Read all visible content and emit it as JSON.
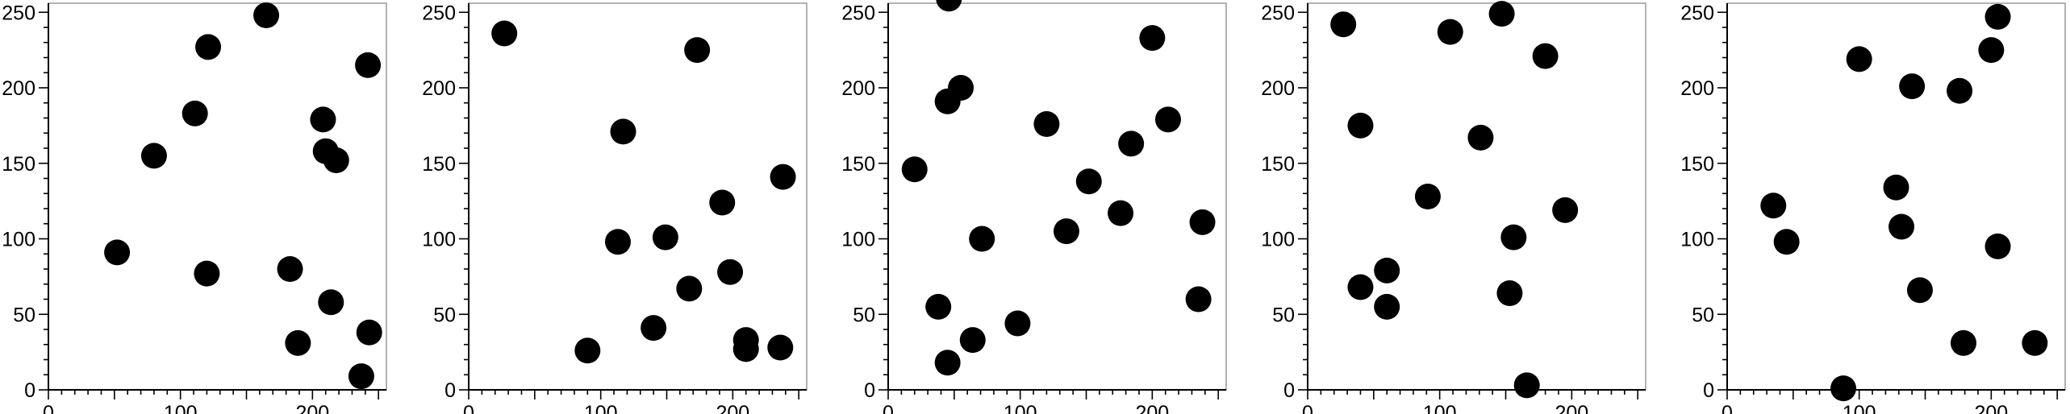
{
  "chart_data": [
    {
      "type": "scatter",
      "xlim": [
        0,
        256
      ],
      "ylim": [
        0,
        256
      ],
      "xticks": [
        "0",
        "100",
        "200"
      ],
      "yticks": [
        "0",
        "50",
        "100",
        "150",
        "200",
        "250"
      ],
      "grid": false,
      "marker_color": "#000000",
      "points": [
        {
          "x": 165,
          "y": 248
        },
        {
          "x": 121,
          "y": 227
        },
        {
          "x": 242,
          "y": 215
        },
        {
          "x": 111,
          "y": 183
        },
        {
          "x": 80,
          "y": 155
        },
        {
          "x": 208,
          "y": 179
        },
        {
          "x": 210,
          "y": 158
        },
        {
          "x": 218,
          "y": 152
        },
        {
          "x": 52,
          "y": 91
        },
        {
          "x": 120,
          "y": 77
        },
        {
          "x": 183,
          "y": 80
        },
        {
          "x": 214,
          "y": 58
        },
        {
          "x": 243,
          "y": 38
        },
        {
          "x": 189,
          "y": 31
        },
        {
          "x": 237,
          "y": 9
        }
      ]
    },
    {
      "type": "scatter",
      "xlim": [
        0,
        256
      ],
      "ylim": [
        0,
        256
      ],
      "xticks": [
        "0",
        "100",
        "200"
      ],
      "yticks": [
        "0",
        "50",
        "100",
        "150",
        "200",
        "250"
      ],
      "grid": false,
      "marker_color": "#000000",
      "points": [
        {
          "x": 27,
          "y": 236
        },
        {
          "x": 173,
          "y": 225
        },
        {
          "x": 117,
          "y": 171
        },
        {
          "x": 238,
          "y": 141
        },
        {
          "x": 192,
          "y": 124
        },
        {
          "x": 149,
          "y": 101
        },
        {
          "x": 113,
          "y": 98
        },
        {
          "x": 198,
          "y": 78
        },
        {
          "x": 167,
          "y": 67
        },
        {
          "x": 140,
          "y": 41
        },
        {
          "x": 90,
          "y": 26
        },
        {
          "x": 210,
          "y": 33
        },
        {
          "x": 210,
          "y": 27
        },
        {
          "x": 236,
          "y": 28
        }
      ]
    },
    {
      "type": "scatter",
      "xlim": [
        0,
        256
      ],
      "ylim": [
        0,
        256
      ],
      "xticks": [
        "0",
        "100",
        "200"
      ],
      "yticks": [
        "0",
        "50",
        "100",
        "150",
        "200",
        "250"
      ],
      "grid": false,
      "marker_color": "#000000",
      "points": [
        {
          "x": 46,
          "y": 259
        },
        {
          "x": 200,
          "y": 233
        },
        {
          "x": 55,
          "y": 200
        },
        {
          "x": 45,
          "y": 191
        },
        {
          "x": 120,
          "y": 176
        },
        {
          "x": 212,
          "y": 179
        },
        {
          "x": 184,
          "y": 163
        },
        {
          "x": 20,
          "y": 146
        },
        {
          "x": 152,
          "y": 138
        },
        {
          "x": 176,
          "y": 117
        },
        {
          "x": 238,
          "y": 111
        },
        {
          "x": 135,
          "y": 105
        },
        {
          "x": 71,
          "y": 100
        },
        {
          "x": 38,
          "y": 55
        },
        {
          "x": 235,
          "y": 60
        },
        {
          "x": 98,
          "y": 44
        },
        {
          "x": 64,
          "y": 33
        },
        {
          "x": 45,
          "y": 18
        }
      ]
    },
    {
      "type": "scatter",
      "xlim": [
        0,
        256
      ],
      "ylim": [
        0,
        256
      ],
      "xticks": [
        "0",
        "100",
        "200"
      ],
      "yticks": [
        "0",
        "50",
        "100",
        "150",
        "200",
        "250"
      ],
      "grid": false,
      "marker_color": "#000000",
      "points": [
        {
          "x": 27,
          "y": 242
        },
        {
          "x": 147,
          "y": 249
        },
        {
          "x": 108,
          "y": 237
        },
        {
          "x": 180,
          "y": 221
        },
        {
          "x": 40,
          "y": 175
        },
        {
          "x": 131,
          "y": 167
        },
        {
          "x": 91,
          "y": 128
        },
        {
          "x": 195,
          "y": 119
        },
        {
          "x": 156,
          "y": 101
        },
        {
          "x": 60,
          "y": 79
        },
        {
          "x": 40,
          "y": 68
        },
        {
          "x": 153,
          "y": 64
        },
        {
          "x": 60,
          "y": 55
        },
        {
          "x": 166,
          "y": 3
        }
      ]
    },
    {
      "type": "scatter",
      "xlim": [
        0,
        256
      ],
      "ylim": [
        0,
        256
      ],
      "xticks": [
        "0",
        "100",
        "200"
      ],
      "yticks": [
        "0",
        "50",
        "100",
        "150",
        "200",
        "250"
      ],
      "grid": false,
      "marker_color": "#000000",
      "points": [
        {
          "x": 205,
          "y": 247
        },
        {
          "x": 200,
          "y": 225
        },
        {
          "x": 100,
          "y": 219
        },
        {
          "x": 140,
          "y": 201
        },
        {
          "x": 176,
          "y": 198
        },
        {
          "x": 35,
          "y": 122
        },
        {
          "x": 128,
          "y": 134
        },
        {
          "x": 132,
          "y": 108
        },
        {
          "x": 45,
          "y": 98
        },
        {
          "x": 205,
          "y": 95
        },
        {
          "x": 146,
          "y": 66
        },
        {
          "x": 179,
          "y": 31
        },
        {
          "x": 233,
          "y": 31
        },
        {
          "x": 88,
          "y": 1
        }
      ]
    }
  ]
}
